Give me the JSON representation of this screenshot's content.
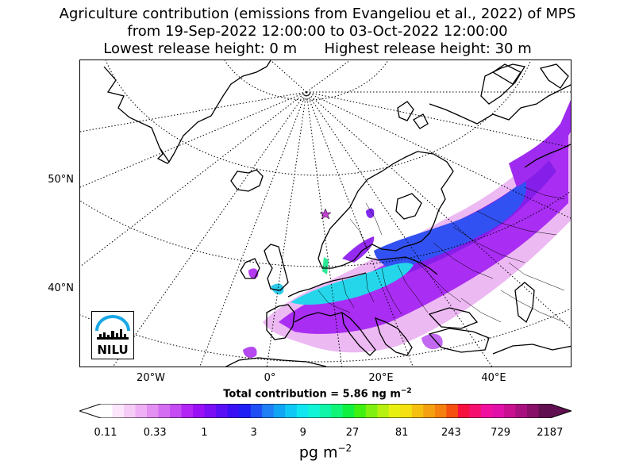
{
  "title": {
    "line1": "Agriculture contribution (emissions from Evangeliou et al., 2022) of MPS",
    "line2": "from 19-Sep-2022 12:00:00 to 03-Oct-2022 12:00:00",
    "line3": "Lowest release height: 0 m      Highest release height: 30 m"
  },
  "axes": {
    "lat_labels": [
      "50°N",
      "40°N"
    ],
    "lon_labels": [
      "20°W",
      "0°",
      "20°E",
      "40°E"
    ]
  },
  "total": {
    "prefix": "Total contribution = 5.86 ng m",
    "exp": "−2"
  },
  "colorbar": {
    "tick_labels": [
      "0.11",
      "0.33",
      "1",
      "3",
      "9",
      "27",
      "81",
      "243",
      "729",
      "2187"
    ],
    "unit": "pg m",
    "unit_exp": "−2",
    "colors": [
      "#ffffff",
      "#fbe6fb",
      "#f5ccf5",
      "#efb0f5",
      "#e48ff2",
      "#d56df2",
      "#c54bf2",
      "#b225f5",
      "#9a10f5",
      "#7a0ef5",
      "#5a10f5",
      "#3a10f5",
      "#1f1ff5",
      "#1f4ff5",
      "#1f7ff5",
      "#10a5f5",
      "#10c8f5",
      "#10e6f0",
      "#10f5d8",
      "#10f5a8",
      "#10f578",
      "#10f040",
      "#40f010",
      "#80f010",
      "#b8f010",
      "#e8f010",
      "#f5e010",
      "#f5c010",
      "#f5a010",
      "#f58010",
      "#f55010",
      "#f51040",
      "#f51070",
      "#f010a0",
      "#e010a8",
      "#c81090",
      "#a81080",
      "#881068",
      "#601050"
    ]
  },
  "logo": {
    "text": "NILU"
  },
  "map_layers": {
    "plume_colors": {
      "light": "#e8a8f0",
      "purple": "#a020f0",
      "violet": "#8a10e8",
      "blue": "#2040f0",
      "cyan": "#18d8e8",
      "green": "#18e898"
    }
  }
}
